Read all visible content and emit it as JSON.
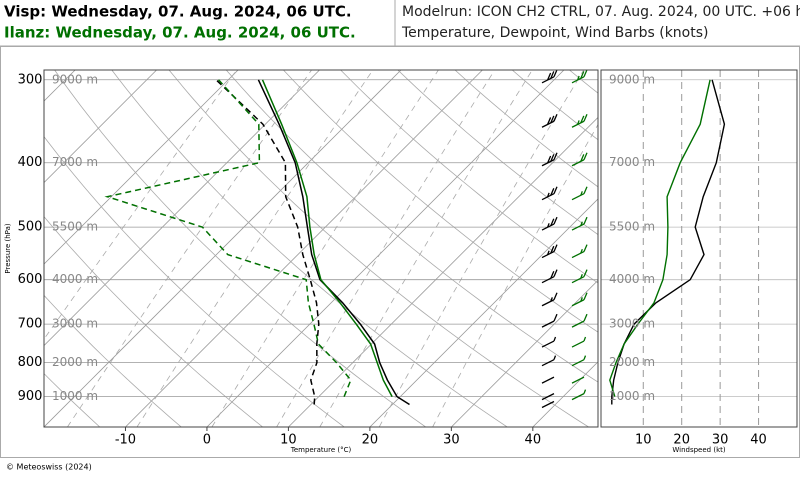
{
  "header": {
    "left_top": "Visp: Wednesday, 07. Aug. 2024, 06 UTC.",
    "left_bottom": "Ilanz: Wednesday, 07. Aug. 2024, 06 UTC.",
    "right_top": "Modelrun: ICON CH2 CTRL, 07. Aug. 2024, 00 UTC. +06 h",
    "right_bottom": "Temperature, Dewpoint, Wind Barbs (knots)"
  },
  "footer": "© Meteoswiss (2024)",
  "chart_data": [
    {
      "type": "skewt",
      "xlabel": "Temperature (°C)",
      "ylabel": "Pressure (hPa)",
      "xlim": [
        -20,
        48
      ],
      "ylim": [
        1000,
        290
      ],
      "log_y": true,
      "xticks": [
        -10,
        0,
        10,
        20,
        30,
        40
      ],
      "yticks": [
        300,
        400,
        500,
        600,
        700,
        800,
        900
      ],
      "height_labels": [
        {
          "value": 300,
          "label": "9000 m"
        },
        {
          "value": 400,
          "label": "7000 m"
        },
        {
          "value": 500,
          "label": "5500 m"
        },
        {
          "value": 600,
          "label": "4000 m"
        },
        {
          "value": 700,
          "label": "3000 m"
        },
        {
          "value": 800,
          "label": "2000 m"
        },
        {
          "value": 900,
          "label": "1000 m"
        }
      ],
      "series": [
        {
          "color": "#000000",
          "dash": false,
          "y": [
            925,
            900,
            850,
            800,
            750,
            700,
            650,
            600,
            550,
            500,
            450,
            400,
            350,
            300
          ],
          "values": [
            22.1,
            19.6,
            16.4,
            13.3,
            10.4,
            6.2,
            1.4,
            -4.2,
            -8.3,
            -12.2,
            -16.5,
            -21.6,
            -28.3,
            -36.3
          ]
        },
        {
          "color": "#007000",
          "dash": false,
          "y": [
            900,
            850,
            800,
            750,
            700,
            650,
            600,
            550,
            500,
            450,
            400,
            350,
            300
          ],
          "values": [
            19.0,
            15.9,
            13.0,
            9.9,
            5.7,
            1.1,
            -4.1,
            -8.0,
            -11.9,
            -16.0,
            -21.4,
            -28.0,
            -35.8
          ]
        },
        {
          "color": "#000000",
          "dash": true,
          "y": [
            925,
            900,
            850,
            800,
            750,
            700,
            650,
            600,
            550,
            500,
            450,
            400,
            350,
            300
          ],
          "values": [
            10.4,
            9.5,
            7.0,
            5.6,
            3.3,
            1.1,
            -1.8,
            -5.4,
            -9.4,
            -13.4,
            -18.6,
            -22.8,
            -30.3,
            -41.5
          ]
        },
        {
          "color": "#007000",
          "dash": true,
          "y": [
            900,
            850,
            800,
            750,
            700,
            650,
            600,
            550,
            500,
            450,
            400,
            350,
            300
          ],
          "values": [
            13.1,
            11.9,
            8.0,
            3.5,
            0.5,
            -2.8,
            -5.9,
            -18.6,
            -25.1,
            -40.5,
            -26.0,
            -30.8,
            -41.2
          ]
        }
      ]
    },
    {
      "type": "line",
      "xlabel": "Windspeed (kt)",
      "xlim": [
        -1,
        50
      ],
      "ylim": [
        1000,
        290
      ],
      "log_y": true,
      "xticks": [
        10,
        20,
        30,
        40
      ],
      "yticks": [
        300,
        400,
        500,
        600,
        700,
        800,
        900
      ],
      "series": [
        {
          "color": "#000000",
          "y": [
            925,
            900,
            850,
            800,
            750,
            700,
            650,
            600,
            550,
            500,
            450,
            400,
            350,
            300
          ],
          "values": [
            1.8,
            1.8,
            2.3,
            3.4,
            5.0,
            7.6,
            13.3,
            22.2,
            25.8,
            23.5,
            25.6,
            29.0,
            31.1,
            27.9
          ]
        },
        {
          "color": "#007000",
          "y": [
            900,
            850,
            800,
            750,
            700,
            650,
            600,
            550,
            500,
            450,
            400,
            350,
            300
          ],
          "values": [
            2.6,
            1.3,
            2.9,
            5.0,
            8.6,
            12.8,
            15.1,
            16.2,
            16.4,
            16.2,
            19.6,
            24.8,
            27.4
          ]
        }
      ]
    }
  ]
}
